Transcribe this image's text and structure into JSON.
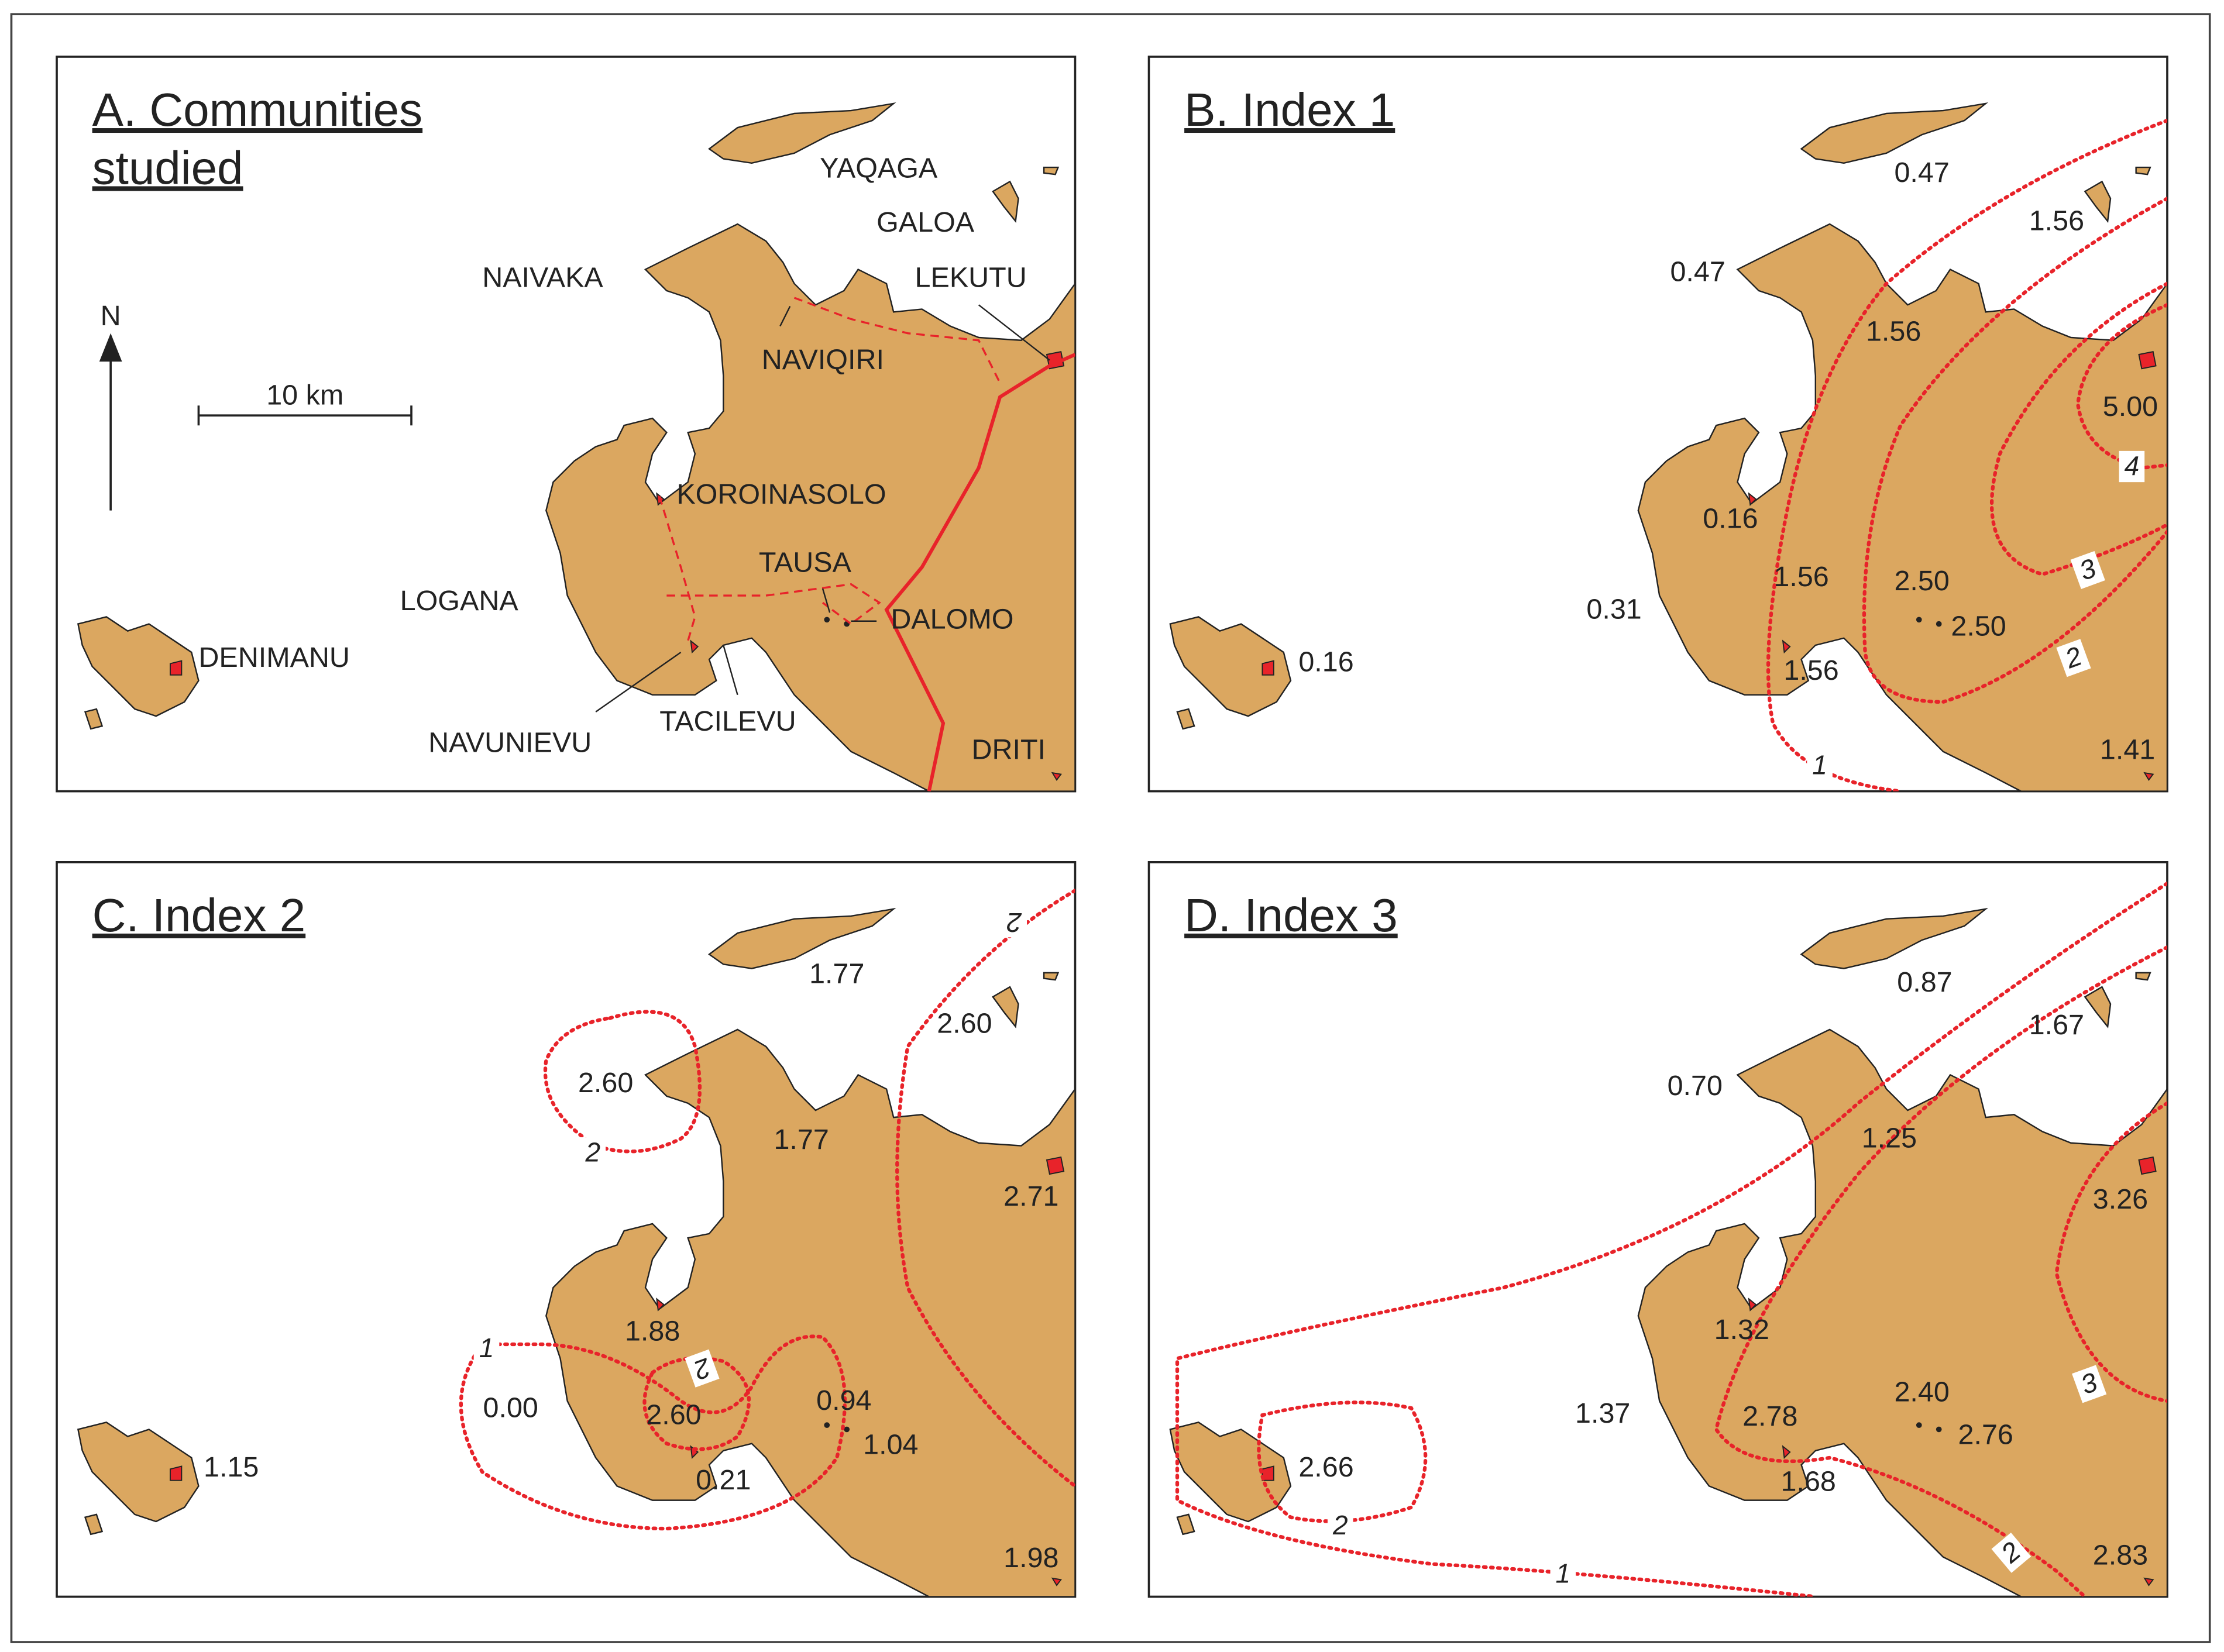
{
  "panels": [
    {
      "title": [
        "A. Communities",
        "studied"
      ],
      "north": "N",
      "scale": "10 km",
      "labels": [
        "YAQAGA",
        "GALOA",
        "NAIVAKA",
        "LEKUTU",
        "NAVIQIRI",
        "KOROINASOLO",
        "TAUSA",
        "LOGANA",
        "DALOMO",
        "DENIMANU",
        "NAVUNIEVU",
        "TACILEVU",
        "DRITI"
      ],
      "contour_labels": []
    },
    {
      "title": [
        "B. Index 1"
      ],
      "labels": [
        "0.47",
        "1.56",
        "0.47",
        "1.56",
        "5.00",
        "0.16",
        "1.56",
        "2.50",
        "0.31",
        "2.50",
        "0.16",
        "1.56",
        "1.41"
      ],
      "contour_labels": [
        "1",
        "2",
        "3",
        "4"
      ]
    },
    {
      "title": [
        "C. Index 2"
      ],
      "labels": [
        "1.77",
        "2.60",
        "2.60",
        "1.77",
        "2.71",
        "1.88",
        "0.00",
        "2.60",
        "0.94",
        "1.04",
        "0.21",
        "1.15",
        "1.98"
      ],
      "contour_labels": [
        "2",
        "2",
        "1",
        "2"
      ]
    },
    {
      "title": [
        "D. Index 3"
      ],
      "labels": [
        "0.87",
        "1.67",
        "0.70",
        "1.25",
        "3.26",
        "1.32",
        "2.40",
        "1.37",
        "2.78",
        "2.76",
        "1.68",
        "2.66",
        "2.83"
      ],
      "contour_labels": [
        "3",
        "2",
        "2",
        "1"
      ]
    }
  ]
}
